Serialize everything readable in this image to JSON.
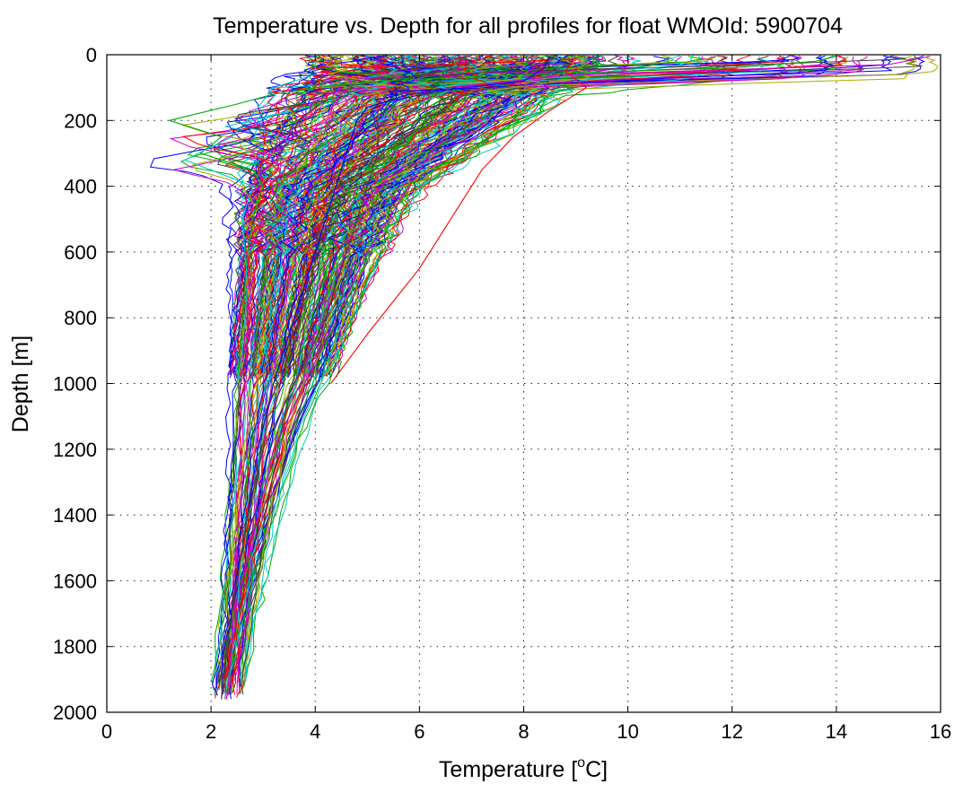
{
  "chart_data": {
    "type": "line",
    "title": "Temperature vs. Depth for all profiles for float WMOId: 5900704",
    "xlabel": "Temperature [°C]",
    "xlabel_main": "Temperature [",
    "xlabel_sup": "o",
    "xlabel_unit": "C]",
    "ylabel": "Depth [m]",
    "xlim": [
      0,
      16
    ],
    "ylim": [
      2000,
      0
    ],
    "y_reversed": true,
    "grid": true,
    "legend": "none",
    "x_ticks": [
      "0",
      "2",
      "4",
      "6",
      "8",
      "10",
      "12",
      "14",
      "16"
    ],
    "y_ticks": [
      "0",
      "200",
      "400",
      "600",
      "800",
      "1000",
      "1200",
      "1400",
      "1600",
      "1800",
      "2000"
    ],
    "series_colors": [
      "#0000ff",
      "#00aa00",
      "#ff0000",
      "#00cccc",
      "#cc00cc",
      "#aaaa00",
      "#404040"
    ],
    "representative_profiles": [
      {
        "depth": [
          5,
          20,
          40,
          60,
          80,
          100,
          120,
          150,
          200,
          250,
          300,
          350,
          400,
          500,
          600,
          800,
          1000
        ],
        "temperature": [
          14.0,
          13.6,
          12.0,
          8.0,
          5.2,
          4.0,
          3.2,
          2.5,
          1.2,
          2.2,
          1.8,
          2.8,
          3.0,
          2.8,
          2.7,
          2.6,
          2.5
        ]
      },
      {
        "depth": [
          5,
          30,
          60,
          100,
          150,
          200,
          300,
          400,
          500,
          600,
          800,
          1000,
          1200,
          1400,
          1600,
          1800,
          1960
        ],
        "temperature": [
          15.8,
          15.0,
          9.0,
          6.5,
          7.0,
          6.8,
          6.2,
          5.8,
          5.4,
          5.0,
          4.4,
          3.8,
          3.2,
          2.9,
          2.6,
          2.4,
          2.3
        ]
      },
      {
        "depth": [
          5,
          40,
          80,
          120,
          160,
          200,
          300,
          400,
          600,
          800,
          1000,
          1200,
          1400,
          1600,
          1800,
          1960
        ],
        "temperature": [
          8.5,
          8.4,
          8.0,
          5.8,
          5.0,
          4.8,
          4.6,
          4.4,
          4.0,
          3.6,
          3.2,
          2.9,
          2.7,
          2.5,
          2.3,
          2.2
        ]
      },
      {
        "depth": [
          5,
          60,
          100,
          180,
          250,
          320,
          400,
          500,
          700,
          900,
          1000
        ],
        "temperature": [
          4.0,
          4.0,
          3.2,
          2.8,
          2.4,
          1.5,
          2.8,
          2.6,
          2.7,
          2.6,
          2.5
        ]
      },
      {
        "depth": [
          5,
          50,
          100,
          150,
          200,
          300,
          400,
          500,
          600,
          800,
          1000,
          1200,
          1400,
          1600,
          1800,
          1960
        ],
        "temperature": [
          6.0,
          6.0,
          5.6,
          5.4,
          5.2,
          5.2,
          5.0,
          4.8,
          4.6,
          4.2,
          3.6,
          3.0,
          2.7,
          2.5,
          2.3,
          2.2
        ]
      },
      {
        "depth": [
          5,
          50,
          100,
          170,
          250,
          350,
          450,
          550,
          650,
          750,
          850,
          1000
        ],
        "temperature": [
          9.0,
          8.8,
          9.2,
          8.5,
          7.8,
          7.2,
          6.8,
          6.4,
          6.0,
          5.5,
          5.0,
          4.3
        ]
      }
    ]
  }
}
